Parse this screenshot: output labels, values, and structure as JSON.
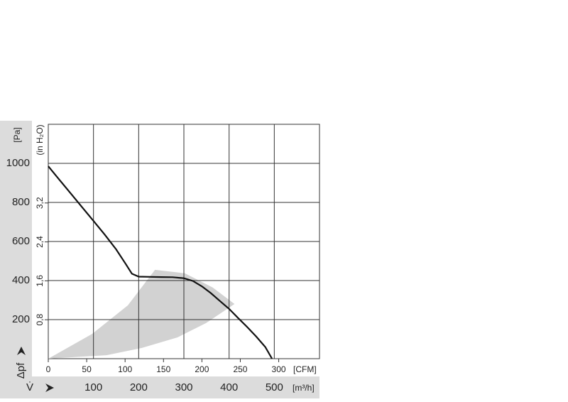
{
  "chart_data": {
    "type": "line",
    "ylabel": "Δpf",
    "yunit": "[Pa]",
    "y2unit": "(in H₂O)",
    "xlabel": "V̇",
    "xunit": "[m³/h]",
    "x2unit": "[CFM]",
    "xlim": [
      0,
      600
    ],
    "xticks": [
      100,
      200,
      300,
      400,
      500
    ],
    "x2lim": [
      0,
      353.1
    ],
    "x2ticks": [
      0,
      50,
      100,
      150,
      200,
      250,
      300
    ],
    "ylim": [
      0,
      1200
    ],
    "yticks": [
      200,
      400,
      600,
      800,
      1000
    ],
    "y2lim": [
      0,
      4.817
    ],
    "y2ticks": [
      {
        "value": 0.8,
        "label": "0,8"
      },
      {
        "value": 1.6,
        "label": "1,6"
      },
      {
        "value": 2.4,
        "label": "2,4"
      },
      {
        "value": 3.2,
        "label": "3,2"
      }
    ],
    "grid": true,
    "series": [
      {
        "color": "#d2d2d2",
        "fill": true,
        "x": [
          0,
          97,
          176,
          236,
          302,
          364,
          412,
          349,
          286,
          207,
          129,
          0
        ],
        "values": [
          0,
          127,
          273,
          455,
          437,
          364,
          280,
          182,
          109,
          55,
          18,
          0
        ]
      },
      {
        "color": "#111111",
        "fill": false,
        "x": [
          0,
          25,
          50,
          75,
          100,
          125,
          150,
          170,
          185,
          200,
          225,
          250,
          275,
          300,
          320,
          340,
          360,
          380,
          400,
          420,
          440,
          460,
          480,
          495
        ],
        "values": [
          985,
          915,
          845,
          775,
          705,
          635,
          560,
          490,
          435,
          420,
          419,
          418,
          417,
          412,
          398,
          370,
          335,
          295,
          255,
          208,
          162,
          113,
          60,
          0
        ]
      }
    ]
  }
}
